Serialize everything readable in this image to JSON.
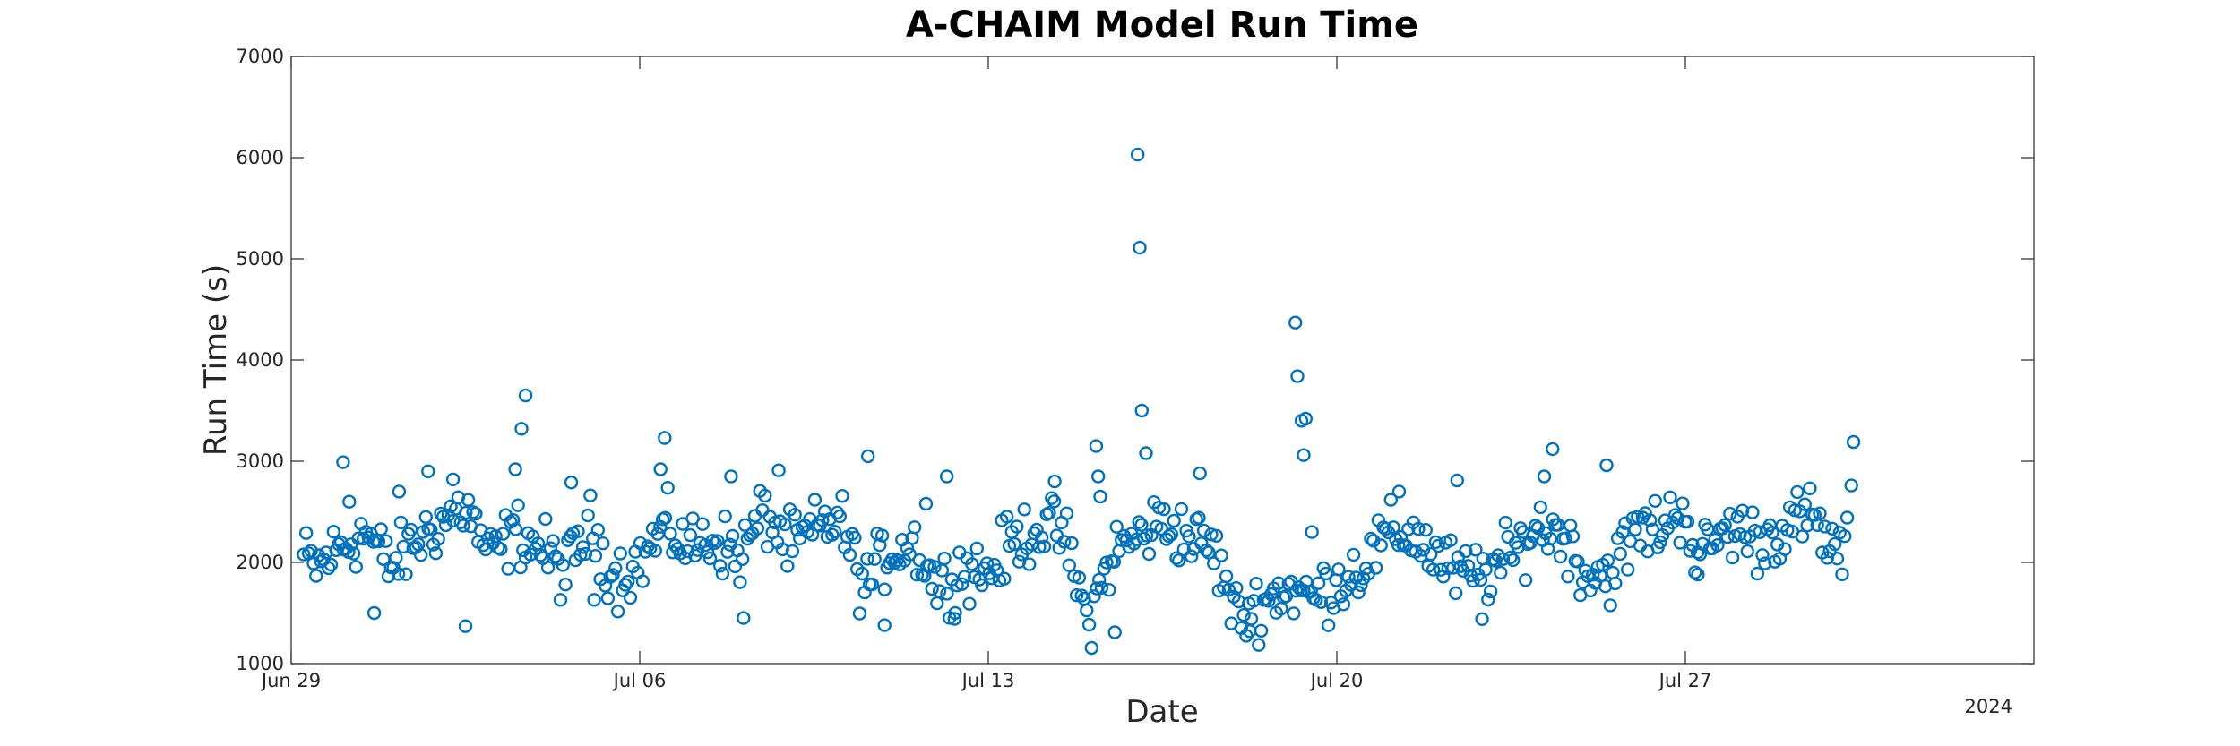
{
  "chart_data": {
    "type": "scatter",
    "title": "A-CHAIM Model Run Time",
    "xlabel": "Date",
    "ylabel": "Run Time (s)",
    "year_label": "2024",
    "xlim": [
      "2024-06-29",
      "2024-08-03"
    ],
    "ylim": [
      1000,
      7000
    ],
    "yticks": [
      1000,
      2000,
      3000,
      4000,
      5000,
      6000,
      7000
    ],
    "xticks": [
      {
        "date": "2024-06-29",
        "label": "Jun 29"
      },
      {
        "date": "2024-07-06",
        "label": "Jul 06"
      },
      {
        "date": "2024-07-13",
        "label": "Jul 13"
      },
      {
        "date": "2024-07-20",
        "label": "Jul 20"
      },
      {
        "date": "2024-07-27",
        "label": "Jul 27"
      }
    ],
    "grid": false,
    "marker": "open-circle",
    "color": "#0072BD",
    "anchors": [
      [
        "2024-06-29T06:00",
        2050
      ],
      [
        "2024-06-29T12:00",
        1950
      ],
      [
        "2024-06-30T00:00",
        2150
      ],
      [
        "2024-06-30T12:00",
        2300
      ],
      [
        "2024-07-01T00:00",
        1950
      ],
      [
        "2024-07-01T12:00",
        2200
      ],
      [
        "2024-07-02T00:00",
        2400
      ],
      [
        "2024-07-02T12:00",
        2550
      ],
      [
        "2024-07-03T00:00",
        2050
      ],
      [
        "2024-07-03T12:00",
        2300
      ],
      [
        "2024-07-04T00:00",
        2150
      ],
      [
        "2024-07-04T12:00",
        1900
      ],
      [
        "2024-07-05T00:00",
        2350
      ],
      [
        "2024-07-05T12:00",
        1850
      ],
      [
        "2024-07-06T00:00",
        2000
      ],
      [
        "2024-07-06T12:00",
        2350
      ],
      [
        "2024-07-07T00:00",
        2150
      ],
      [
        "2024-07-07T12:00",
        2250
      ],
      [
        "2024-07-08T00:00",
        2050
      ],
      [
        "2024-07-08T12:00",
        2500
      ],
      [
        "2024-07-09T00:00",
        2150
      ],
      [
        "2024-07-09T12:00",
        2300
      ],
      [
        "2024-07-10T00:00",
        2450
      ],
      [
        "2024-07-10T12:00",
        1750
      ],
      [
        "2024-07-11T00:00",
        2100
      ],
      [
        "2024-07-11T12:00",
        2200
      ],
      [
        "2024-07-12T00:00",
        1750
      ],
      [
        "2024-07-12T12:00",
        1950
      ],
      [
        "2024-07-13T00:00",
        1900
      ],
      [
        "2024-07-13T12:00",
        2200
      ],
      [
        "2024-07-14T00:00",
        2350
      ],
      [
        "2024-07-14T12:00",
        2300
      ],
      [
        "2024-07-15T00:00",
        1400
      ],
      [
        "2024-07-15T12:00",
        2100
      ],
      [
        "2024-07-16T00:00",
        2250
      ],
      [
        "2024-07-16T12:00",
        2400
      ],
      [
        "2024-07-17T00:00",
        2250
      ],
      [
        "2024-07-17T12:00",
        2150
      ],
      [
        "2024-07-18T00:00",
        1450
      ],
      [
        "2024-07-18T12:00",
        1600
      ],
      [
        "2024-07-19T00:00",
        1750
      ],
      [
        "2024-07-19T12:00",
        1650
      ],
      [
        "2024-07-20T00:00",
        1800
      ],
      [
        "2024-07-20T12:00",
        1950
      ],
      [
        "2024-07-21T00:00",
        2250
      ],
      [
        "2024-07-21T12:00",
        2300
      ],
      [
        "2024-07-22T00:00",
        2050
      ],
      [
        "2024-07-22T12:00",
        1850
      ],
      [
        "2024-07-23T00:00",
        1900
      ],
      [
        "2024-07-23T12:00",
        2050
      ],
      [
        "2024-07-24T00:00",
        2350
      ],
      [
        "2024-07-24T12:00",
        2300
      ],
      [
        "2024-07-25T00:00",
        1900
      ],
      [
        "2024-07-25T12:00",
        1900
      ],
      [
        "2024-07-26T00:00",
        2300
      ],
      [
        "2024-07-26T12:00",
        2350
      ],
      [
        "2024-07-27T00:00",
        2550
      ],
      [
        "2024-07-27T06:00",
        1950
      ],
      [
        "2024-07-27T12:00",
        2200
      ],
      [
        "2024-07-28T00:00",
        2350
      ],
      [
        "2024-07-28T12:00",
        2200
      ],
      [
        "2024-07-29T00:00",
        2350
      ],
      [
        "2024-07-29T12:00",
        2450
      ],
      [
        "2024-07-30T00:00",
        2100
      ]
    ],
    "scatter": [
      [
        "2024-06-30T01:00",
        2990
      ],
      [
        "2024-06-30T04:00",
        2600
      ],
      [
        "2024-07-01T04:00",
        2700
      ],
      [
        "2024-07-01T18:00",
        2900
      ],
      [
        "2024-07-02T06:00",
        2820
      ],
      [
        "2024-07-02T12:00",
        1370
      ],
      [
        "2024-07-03T17:00",
        3650
      ],
      [
        "2024-07-03T15:00",
        3320
      ],
      [
        "2024-07-03T12:00",
        2920
      ],
      [
        "2024-07-04T15:00",
        2790
      ],
      [
        "2024-07-06T12:00",
        3230
      ],
      [
        "2024-07-06T10:00",
        2920
      ],
      [
        "2024-07-07T20:00",
        2850
      ],
      [
        "2024-07-08T19:00",
        2910
      ],
      [
        "2024-07-08T02:00",
        1450
      ],
      [
        "2024-07-10T14:00",
        3050
      ],
      [
        "2024-07-10T22:00",
        1380
      ],
      [
        "2024-07-11T18:00",
        2580
      ],
      [
        "2024-07-12T04:00",
        2850
      ],
      [
        "2024-07-14T08:00",
        2800
      ],
      [
        "2024-07-15T04:00",
        3150
      ],
      [
        "2024-07-15T05:00",
        2850
      ],
      [
        "2024-07-15T06:00",
        2650
      ],
      [
        "2024-07-15T13:00",
        1310
      ],
      [
        "2024-07-16T00:00",
        6030
      ],
      [
        "2024-07-16T01:00",
        5110
      ],
      [
        "2024-07-16T02:00",
        3500
      ],
      [
        "2024-07-16T04:00",
        3080
      ],
      [
        "2024-07-17T06:00",
        2880
      ],
      [
        "2024-07-18T06:00",
        1320
      ],
      [
        "2024-07-19T04:00",
        4370
      ],
      [
        "2024-07-19T05:00",
        3840
      ],
      [
        "2024-07-19T07:00",
        3400
      ],
      [
        "2024-07-19T09:00",
        3420
      ],
      [
        "2024-07-19T08:00",
        3060
      ],
      [
        "2024-07-19T12:00",
        2300
      ],
      [
        "2024-07-21T06:00",
        2700
      ],
      [
        "2024-07-22T10:00",
        2810
      ],
      [
        "2024-07-22T22:00",
        1440
      ],
      [
        "2024-07-24T08:00",
        3120
      ],
      [
        "2024-07-24T04:00",
        2850
      ],
      [
        "2024-07-25T10:00",
        2960
      ],
      [
        "2024-07-30T09:00",
        3190
      ],
      [
        "2024-07-30T08:00",
        2760
      ],
      [
        "2024-07-27T06:00",
        1880
      ],
      [
        "2024-07-12T08:00",
        1500
      ],
      [
        "2024-07-05T02:00",
        1630
      ],
      [
        "2024-06-30T16:00",
        1500
      ]
    ],
    "generated_points": {
      "from": "2024-06-29T06:00",
      "to": "2024-07-30T06:00",
      "count": 620,
      "noise": 230
    }
  }
}
